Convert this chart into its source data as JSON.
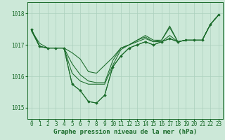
{
  "title": "Graphe pression niveau de la mer (hPa)",
  "background_color": "#cce8d8",
  "grid_color": "#aacfbc",
  "line_color": "#1a6b2a",
  "marker_color": "#1a6b2a",
  "xlim_min": -0.5,
  "xlim_max": 23.5,
  "ylim_min": 1014.65,
  "ylim_max": 1018.35,
  "yticks": [
    1015,
    1016,
    1017,
    1018
  ],
  "xtick_labels": [
    "0",
    "1",
    "2",
    "3",
    "4",
    "5",
    "6",
    "7",
    "8",
    "9",
    "10",
    "11",
    "12",
    "13",
    "14",
    "15",
    "16",
    "17",
    "18",
    "19",
    "20",
    "21",
    "22",
    "23"
  ],
  "series": [
    [
      1017.45,
      1017.05,
      1016.9,
      1016.9,
      1016.9,
      1016.75,
      1016.55,
      1016.15,
      1016.1,
      1016.35,
      1016.6,
      1016.9,
      1017.0,
      1017.1,
      1017.2,
      1017.1,
      1017.1,
      1017.3,
      1017.1,
      1017.15,
      1017.15,
      1017.15,
      1017.65,
      1017.95
    ],
    [
      1017.45,
      1016.95,
      1016.9,
      1016.9,
      1016.9,
      1016.4,
      1016.05,
      1015.85,
      1015.8,
      1015.8,
      1016.5,
      1016.9,
      1017.0,
      1017.15,
      1017.3,
      1017.15,
      1017.15,
      1017.6,
      1017.1,
      1017.15,
      1017.15,
      1017.15,
      1017.65,
      1017.95
    ],
    [
      1017.45,
      1016.95,
      1016.9,
      1016.9,
      1016.9,
      1016.1,
      1015.85,
      1015.75,
      1015.75,
      1015.75,
      1016.35,
      1016.85,
      1017.0,
      1017.15,
      1017.25,
      1017.1,
      1017.15,
      1017.55,
      1017.1,
      1017.15,
      1017.15,
      1017.15,
      1017.65,
      1017.95
    ],
    [
      1017.5,
      1016.95,
      1016.9,
      1016.9,
      1016.9,
      1015.75,
      1015.55,
      1015.2,
      1015.15,
      1015.4,
      1016.3,
      1016.65,
      1016.9,
      1017.0,
      1017.1,
      1017.0,
      1017.1,
      1017.2,
      1017.1,
      1017.15,
      1017.15,
      1017.15,
      1017.65,
      1017.95
    ]
  ],
  "main_series_idx": 3,
  "fontsize_title": 6.5,
  "fontsize_tick": 5.5
}
